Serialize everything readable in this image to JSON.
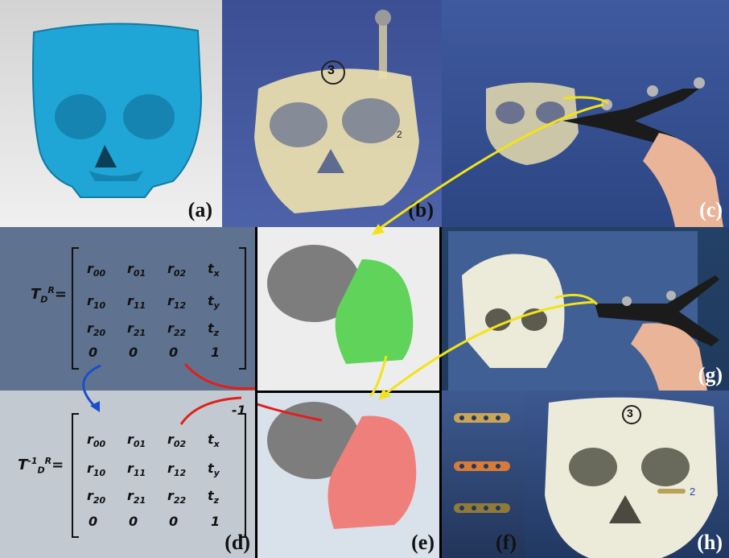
{
  "labels": {
    "a": "(a)",
    "b": "(b)",
    "c": "(c)",
    "d": "(d)",
    "e": "(e)",
    "f": "(f)",
    "g": "(g)",
    "h": "(h)"
  },
  "matrix_top": {
    "lhs_main": "T",
    "lhs_sub": "D",
    "lhs_sup": "R",
    "lhs_eq": "=",
    "rows": [
      [
        "r",
        "00",
        "r",
        "01",
        "r",
        "02",
        "t",
        "x"
      ],
      [
        "r",
        "10",
        "r",
        "11",
        "r",
        "12",
        "t",
        "y"
      ],
      [
        "r",
        "20",
        "r",
        "21",
        "r",
        "22",
        "t",
        "z"
      ]
    ],
    "last_row": [
      "0",
      "0",
      "0",
      "1"
    ]
  },
  "matrix_bottom": {
    "lhs_main": "T",
    "lhs_pre_sup": "-1",
    "lhs_sub": "D",
    "lhs_sup": "R",
    "lhs_eq": "=",
    "exponent": "-1",
    "rows": [
      [
        "r",
        "00",
        "r",
        "01",
        "r",
        "02",
        "t",
        "x"
      ],
      [
        "r",
        "10",
        "r",
        "11",
        "r",
        "12",
        "t",
        "y"
      ],
      [
        "r",
        "20",
        "r",
        "21",
        "r",
        "22",
        "t",
        "z"
      ]
    ],
    "last_row": [
      "0",
      "0",
      "0",
      "1"
    ]
  },
  "model_numbers": {
    "b": "3",
    "h": "3",
    "b_side": "2",
    "h_side": "2"
  },
  "colors": {
    "skull_blue": "#1fa6d6",
    "arrow_yellow": "#f2e318",
    "arrow_red": "#e0201b",
    "arrow_blue": "#1a4fc9",
    "segment_green": "#5fd35a",
    "segment_red": "#ef7f7a",
    "panel_d_top": "#5f7390",
    "panel_d_bottom": "#c3c9d1"
  }
}
